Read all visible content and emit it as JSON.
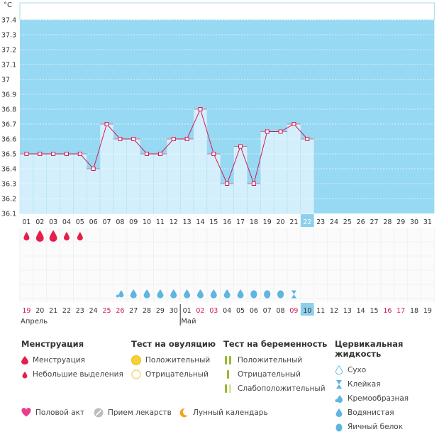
{
  "chart_data": {
    "type": "line",
    "unit_label": "°C",
    "ylim": [
      36.1,
      37.4
    ],
    "yticks": [
      "36.1",
      "36.2",
      "36.3",
      "36.4",
      "36.5",
      "36.6",
      "36.7",
      "36.8",
      "36.9",
      "37",
      "37.1",
      "37.2",
      "37.3",
      "37.4"
    ],
    "x": [
      "01",
      "02",
      "03",
      "04",
      "05",
      "06",
      "07",
      "08",
      "09",
      "10",
      "11",
      "12",
      "13",
      "14",
      "15",
      "16",
      "17",
      "18",
      "19",
      "20",
      "21",
      "22",
      "23",
      "24",
      "25",
      "26",
      "27",
      "28",
      "29",
      "30",
      "31"
    ],
    "values": [
      36.5,
      36.5,
      36.5,
      36.5,
      36.5,
      36.4,
      36.7,
      36.6,
      36.6,
      36.5,
      36.5,
      36.6,
      36.6,
      36.8,
      36.5,
      36.3,
      36.55,
      36.3,
      36.65,
      36.65,
      36.7,
      36.6,
      null,
      null,
      null,
      null,
      null,
      null,
      null,
      null,
      null
    ],
    "current_day": "22",
    "menstruation": [
      "menstruation",
      "heavy",
      "heavy",
      "menstruation",
      "menstruation",
      null,
      null,
      null,
      null,
      null,
      null,
      null,
      null,
      null,
      null,
      null,
      null,
      null,
      null,
      null,
      null,
      null,
      null,
      null,
      null,
      null,
      null,
      null,
      null,
      null,
      null
    ],
    "cervical_fluid": [
      null,
      null,
      null,
      null,
      null,
      null,
      null,
      "creamy",
      "watery",
      "watery",
      "watery",
      "watery",
      "watery",
      "watery",
      "watery",
      "watery",
      "watery",
      "egg-white",
      "egg-white",
      "egg-white",
      "sticky",
      null,
      null,
      null,
      null,
      null,
      null,
      null,
      null,
      null,
      null
    ],
    "calendar_dates": [
      "19",
      "20",
      "21",
      "22",
      "23",
      "24",
      "25",
      "26",
      "27",
      "28",
      "29",
      "30",
      "01",
      "02",
      "03",
      "04",
      "05",
      "06",
      "07",
      "08",
      "09",
      "10",
      "11",
      "12",
      "13",
      "14",
      "15",
      "16",
      "17",
      "18",
      "19"
    ],
    "calendar_red": [
      true,
      false,
      false,
      false,
      false,
      false,
      true,
      true,
      false,
      false,
      false,
      false,
      false,
      true,
      true,
      false,
      false,
      false,
      false,
      false,
      true,
      false,
      false,
      false,
      false,
      false,
      false,
      true,
      true,
      false,
      false
    ],
    "month_labels": [
      {
        "label": "Апрель",
        "day_index": 0
      },
      {
        "label": "Май",
        "day_index": 12
      }
    ],
    "colors": {
      "sky": "#97d8f2",
      "bar": "#d4effc",
      "bar_edge": "#a9dcf3",
      "line": "#cf1b54",
      "grid": "#ffffff",
      "today": "#8cd0ec",
      "red": "#cf1b54",
      "drop": "#e51e4b",
      "fluid": "#5eb5e2"
    }
  },
  "legend": {
    "menstruation": {
      "title": "Менструация",
      "items": [
        "Менструация",
        "Небольшие выделения"
      ]
    },
    "ovulation": {
      "title": "Тест на овуляцию",
      "items": [
        "Положительный",
        "Отрицательный"
      ]
    },
    "pregnancy": {
      "title": "Тест на беременность",
      "items": [
        "Положительный",
        "Отрицательный",
        "Слабоположительный"
      ]
    },
    "fluid": {
      "title": "Цервикальная жидкость",
      "items": [
        "Сухо",
        "Клейкая",
        "Кремообразная",
        "Водянистая",
        "Яичный белок"
      ]
    },
    "extras": [
      "Половой акт",
      "Прием лекарств",
      "Лунный календарь"
    ]
  }
}
